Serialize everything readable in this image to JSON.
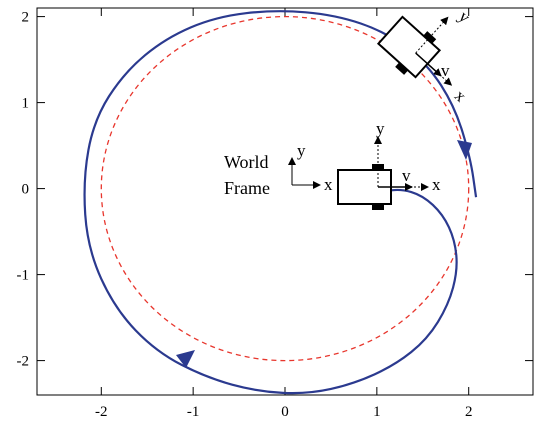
{
  "chart_data": {
    "type": "line",
    "title": "",
    "xlabel": "",
    "ylabel": "",
    "xlim": [
      -2.7,
      2.7
    ],
    "ylim": [
      -2.4,
      2.1
    ],
    "x_ticks": [
      -2,
      -1,
      0,
      1,
      2
    ],
    "y_ticks": [
      2,
      1,
      0,
      -1,
      -2
    ],
    "x_tick_labels": [
      "-2",
      "-1",
      "0",
      "1",
      "2"
    ],
    "y_tick_labels": [
      "2",
      "1",
      "0",
      "-1",
      "-2"
    ],
    "grid": false,
    "series": [
      {
        "style": "dashed",
        "color": "#e8362d",
        "shape": "circle",
        "center": [
          0,
          0
        ],
        "radius": 2.0
      },
      {
        "style": "solid",
        "color": "#2b3a8f",
        "shape": "spiral",
        "points": [
          [
            1.0,
            -0.05
          ],
          [
            1.25,
            0.0
          ],
          [
            1.5,
            -0.08
          ],
          [
            1.72,
            -0.3
          ],
          [
            1.85,
            -0.6
          ],
          [
            1.88,
            -0.95
          ],
          [
            1.78,
            -1.35
          ],
          [
            1.55,
            -1.75
          ],
          [
            1.2,
            -2.05
          ],
          [
            0.75,
            -2.27
          ],
          [
            0.25,
            -2.39
          ],
          [
            -0.3,
            -2.36
          ],
          [
            -0.85,
            -2.2
          ],
          [
            -1.4,
            -1.9
          ],
          [
            -1.85,
            -1.4
          ],
          [
            -2.15,
            -0.7
          ],
          [
            -2.2,
            0.1
          ],
          [
            -2.08,
            0.8
          ],
          [
            -1.75,
            1.35
          ],
          [
            -1.3,
            1.75
          ],
          [
            -0.75,
            2.0
          ],
          [
            -0.1,
            2.08
          ],
          [
            0.55,
            2.02
          ],
          [
            1.1,
            1.82
          ],
          [
            1.55,
            1.45
          ],
          [
            1.85,
            0.95
          ],
          [
            2.02,
            0.35
          ],
          [
            2.08,
            -0.1
          ]
        ]
      }
    ],
    "annotations": {
      "world_frame_line1": "World",
      "world_frame_line2": "Frame",
      "world_x": "x",
      "world_y": "y",
      "robot1_x": "x",
      "robot1_y": "y",
      "robot1_v": "v",
      "robot2_x": "x",
      "robot2_y": "y",
      "robot2_v": "v"
    }
  },
  "colors": {
    "spiral": "#2b3a8f",
    "circle": "#e8362d",
    "axes": "#000000"
  }
}
